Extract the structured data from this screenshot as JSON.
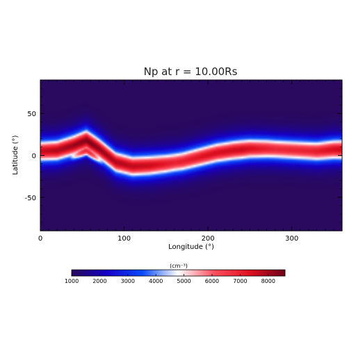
{
  "chart_data": {
    "type": "heatmap",
    "title": "Np at r = 10.00Rs",
    "xlabel": "Longitude (°)",
    "ylabel": "Latitude (°)",
    "xlim": [
      0,
      360
    ],
    "ylim": [
      -90,
      90
    ],
    "xticks": [
      "0",
      "100",
      "200",
      "300"
    ],
    "xtick_values": [
      0,
      100,
      200,
      300
    ],
    "yticks": [
      "-50",
      "0",
      "50"
    ],
    "ytick_values": [
      -50,
      0,
      50
    ],
    "colorbar": {
      "label": "(cm⁻³)",
      "range": [
        1000,
        8600
      ],
      "ticks": [
        "1000",
        "2000",
        "3000",
        "4000",
        "5000",
        "6000",
        "7000",
        "8000"
      ],
      "tick_values": [
        1000,
        2000,
        3000,
        4000,
        5000,
        6000,
        7000,
        8000
      ],
      "colormap": [
        "#2a0a5a",
        "#1500c8",
        "#0a4cff",
        "#ffffff",
        "#ff5060",
        "#e01020",
        "#6e0018"
      ]
    },
    "band_center_lat": [
      [
        0,
        5
      ],
      [
        20,
        6
      ],
      [
        40,
        12
      ],
      [
        55,
        18
      ],
      [
        70,
        8
      ],
      [
        90,
        -8
      ],
      [
        110,
        -13
      ],
      [
        130,
        -12
      ],
      [
        150,
        -10
      ],
      [
        170,
        -7
      ],
      [
        190,
        -2
      ],
      [
        210,
        3
      ],
      [
        230,
        6
      ],
      [
        250,
        8
      ],
      [
        270,
        8
      ],
      [
        290,
        7
      ],
      [
        310,
        6
      ],
      [
        330,
        5
      ],
      [
        350,
        7
      ],
      [
        360,
        7
      ]
    ],
    "band_peak_density": [
      [
        0,
        7600
      ],
      [
        30,
        8000
      ],
      [
        60,
        8400
      ],
      [
        80,
        8000
      ],
      [
        100,
        7800
      ],
      [
        130,
        7600
      ],
      [
        160,
        7000
      ],
      [
        200,
        7400
      ],
      [
        240,
        7600
      ],
      [
        280,
        6900
      ],
      [
        320,
        7000
      ],
      [
        360,
        7600
      ]
    ]
  }
}
